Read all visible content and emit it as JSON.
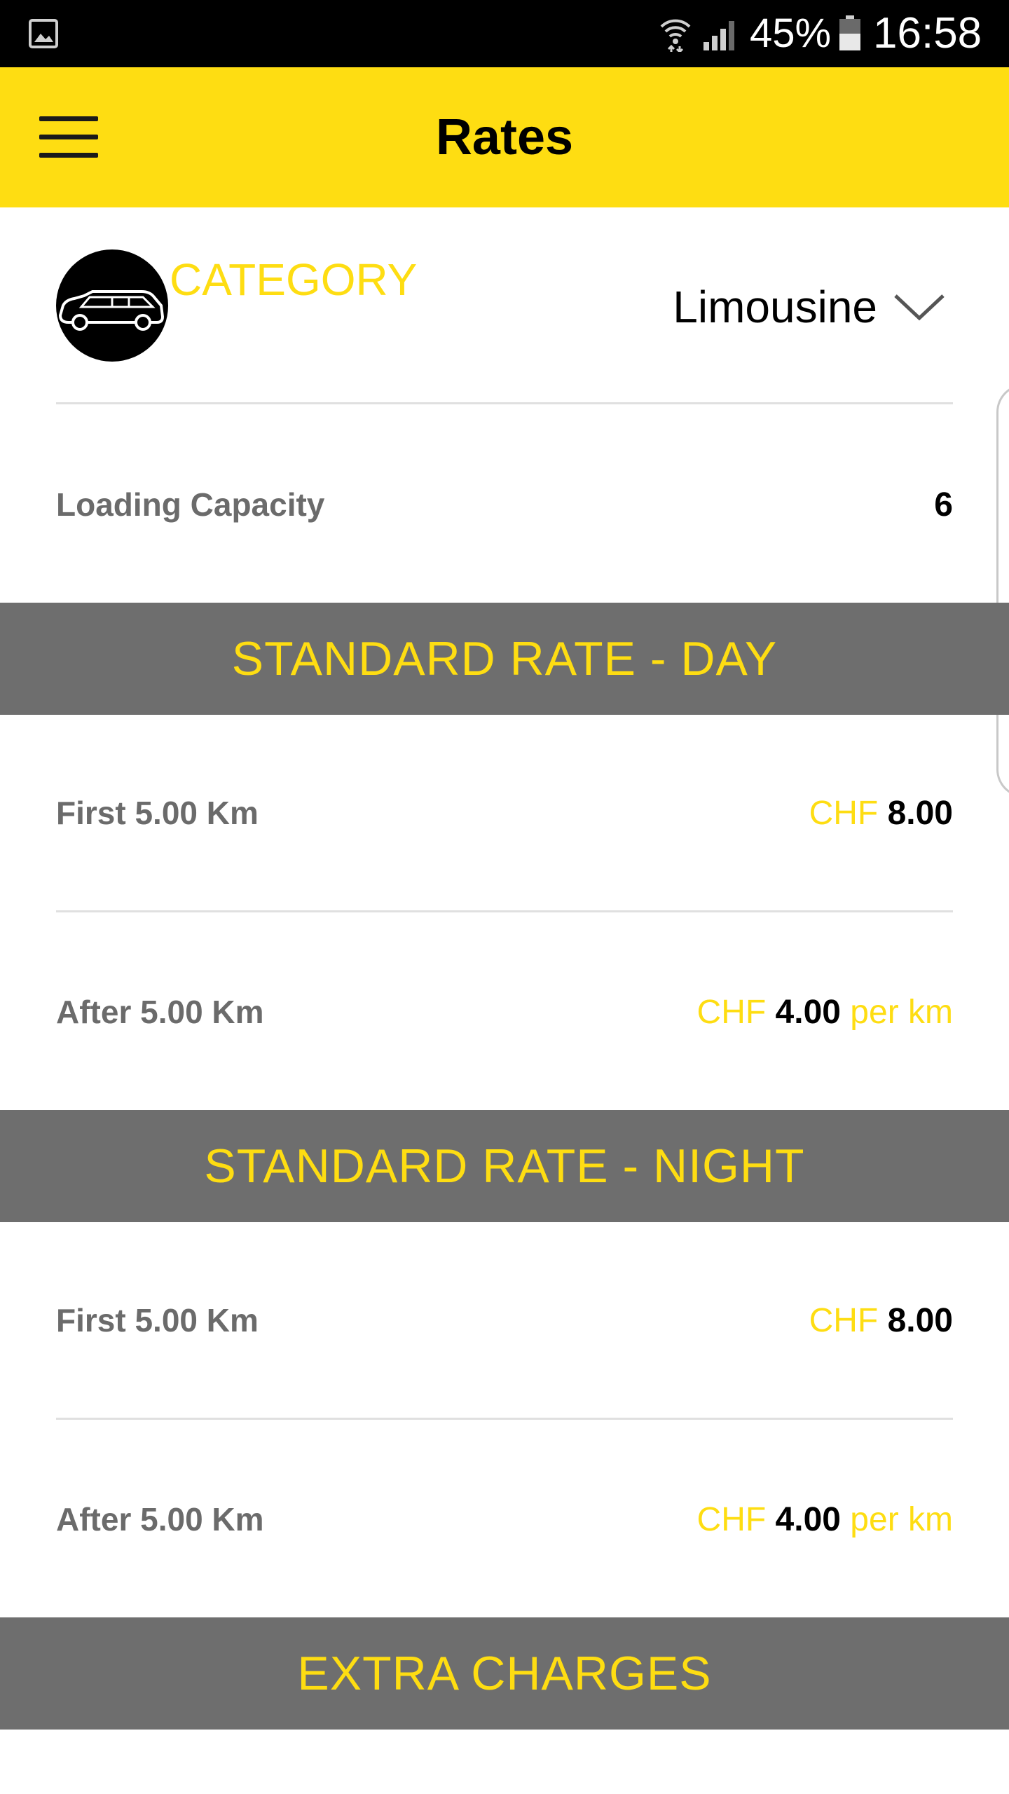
{
  "status_bar": {
    "battery_percent": "45%",
    "time": "16:58"
  },
  "app_bar": {
    "title": "Rates"
  },
  "category": {
    "label": "CATEGORY",
    "selected": "Limousine"
  },
  "loading_capacity": {
    "label": "Loading Capacity",
    "value": "6"
  },
  "sections": {
    "day": {
      "title": "STANDARD RATE - DAY",
      "first": {
        "label": "First 5.00 Km",
        "currency": "CHF",
        "amount": "8.00"
      },
      "after": {
        "label": "After 5.00 Km",
        "currency": "CHF",
        "amount": "4.00",
        "unit": "per km"
      }
    },
    "night": {
      "title": "STANDARD RATE - NIGHT",
      "first": {
        "label": "First 5.00 Km",
        "currency": "CHF",
        "amount": "8.00"
      },
      "after": {
        "label": "After 5.00 Km",
        "currency": "CHF",
        "amount": "4.00",
        "unit": "per km"
      }
    },
    "extra": {
      "title": "EXTRA CHARGES"
    }
  },
  "colors": {
    "accent": "#fedd12",
    "section_bg": "#6e6e6e",
    "status_bar": "#000000"
  },
  "icons": [
    "gallery-icon",
    "wifi-icon",
    "signal-icon",
    "battery-icon",
    "hamburger-menu-icon",
    "limousine-icon",
    "chevron-down-icon"
  ]
}
